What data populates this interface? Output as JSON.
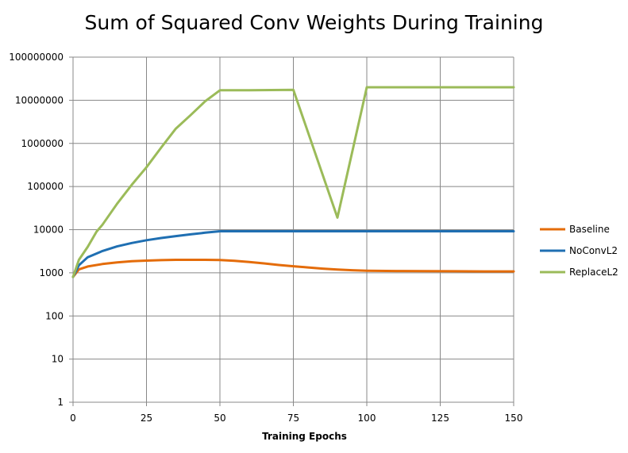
{
  "chart_data": {
    "type": "line",
    "title": "Sum of Squared Conv Weights During Training",
    "xlabel": "Training Epochs",
    "ylabel": "",
    "xlim": [
      0,
      150
    ],
    "ylim": [
      1,
      100000000
    ],
    "yscale": "log",
    "grid": true,
    "legend_position": "right",
    "x_ticks": [
      "0",
      "25",
      "50",
      "75",
      "100",
      "125",
      "150"
    ],
    "y_ticks": [
      "1",
      "10",
      "100",
      "1000",
      "10000",
      "100000",
      "1000000",
      "10000000",
      "100000000"
    ],
    "series": [
      {
        "name": "Baseline",
        "color": "#E46C0A",
        "points": [
          [
            0,
            800
          ],
          [
            2,
            1200
          ],
          [
            5,
            1400
          ],
          [
            10,
            1600
          ],
          [
            15,
            1750
          ],
          [
            20,
            1850
          ],
          [
            25,
            1920
          ],
          [
            30,
            1970
          ],
          [
            35,
            2000
          ],
          [
            40,
            2000
          ],
          [
            45,
            2000
          ],
          [
            50,
            1980
          ],
          [
            55,
            1900
          ],
          [
            60,
            1780
          ],
          [
            65,
            1650
          ],
          [
            70,
            1520
          ],
          [
            75,
            1420
          ],
          [
            80,
            1330
          ],
          [
            85,
            1250
          ],
          [
            90,
            1190
          ],
          [
            95,
            1150
          ],
          [
            100,
            1120
          ],
          [
            110,
            1100
          ],
          [
            120,
            1090
          ],
          [
            130,
            1085
          ],
          [
            140,
            1080
          ],
          [
            150,
            1080
          ]
        ]
      },
      {
        "name": "NoConvL2",
        "color": "#1F6FB2",
        "points": [
          [
            0,
            800
          ],
          [
            2,
            1500
          ],
          [
            5,
            2300
          ],
          [
            10,
            3200
          ],
          [
            15,
            4100
          ],
          [
            20,
            4900
          ],
          [
            25,
            5700
          ],
          [
            30,
            6400
          ],
          [
            35,
            7100
          ],
          [
            40,
            7800
          ],
          [
            45,
            8500
          ],
          [
            50,
            9200
          ],
          [
            60,
            9200
          ],
          [
            75,
            9200
          ],
          [
            100,
            9200
          ],
          [
            125,
            9200
          ],
          [
            150,
            9200
          ]
        ]
      },
      {
        "name": "ReplaceL2",
        "color": "#9BBB59",
        "points": [
          [
            0,
            800
          ],
          [
            2,
            2000
          ],
          [
            5,
            4000
          ],
          [
            8,
            9000
          ],
          [
            10,
            13000
          ],
          [
            15,
            40000
          ],
          [
            20,
            110000
          ],
          [
            25,
            280000
          ],
          [
            30,
            800000
          ],
          [
            35,
            2200000
          ],
          [
            40,
            4500000
          ],
          [
            45,
            9500000
          ],
          [
            50,
            17000000
          ],
          [
            60,
            17000000
          ],
          [
            75,
            17500000
          ],
          [
            90,
            19000
          ],
          [
            100,
            20000000
          ],
          [
            125,
            20000000
          ],
          [
            150,
            20000000
          ]
        ]
      }
    ]
  }
}
